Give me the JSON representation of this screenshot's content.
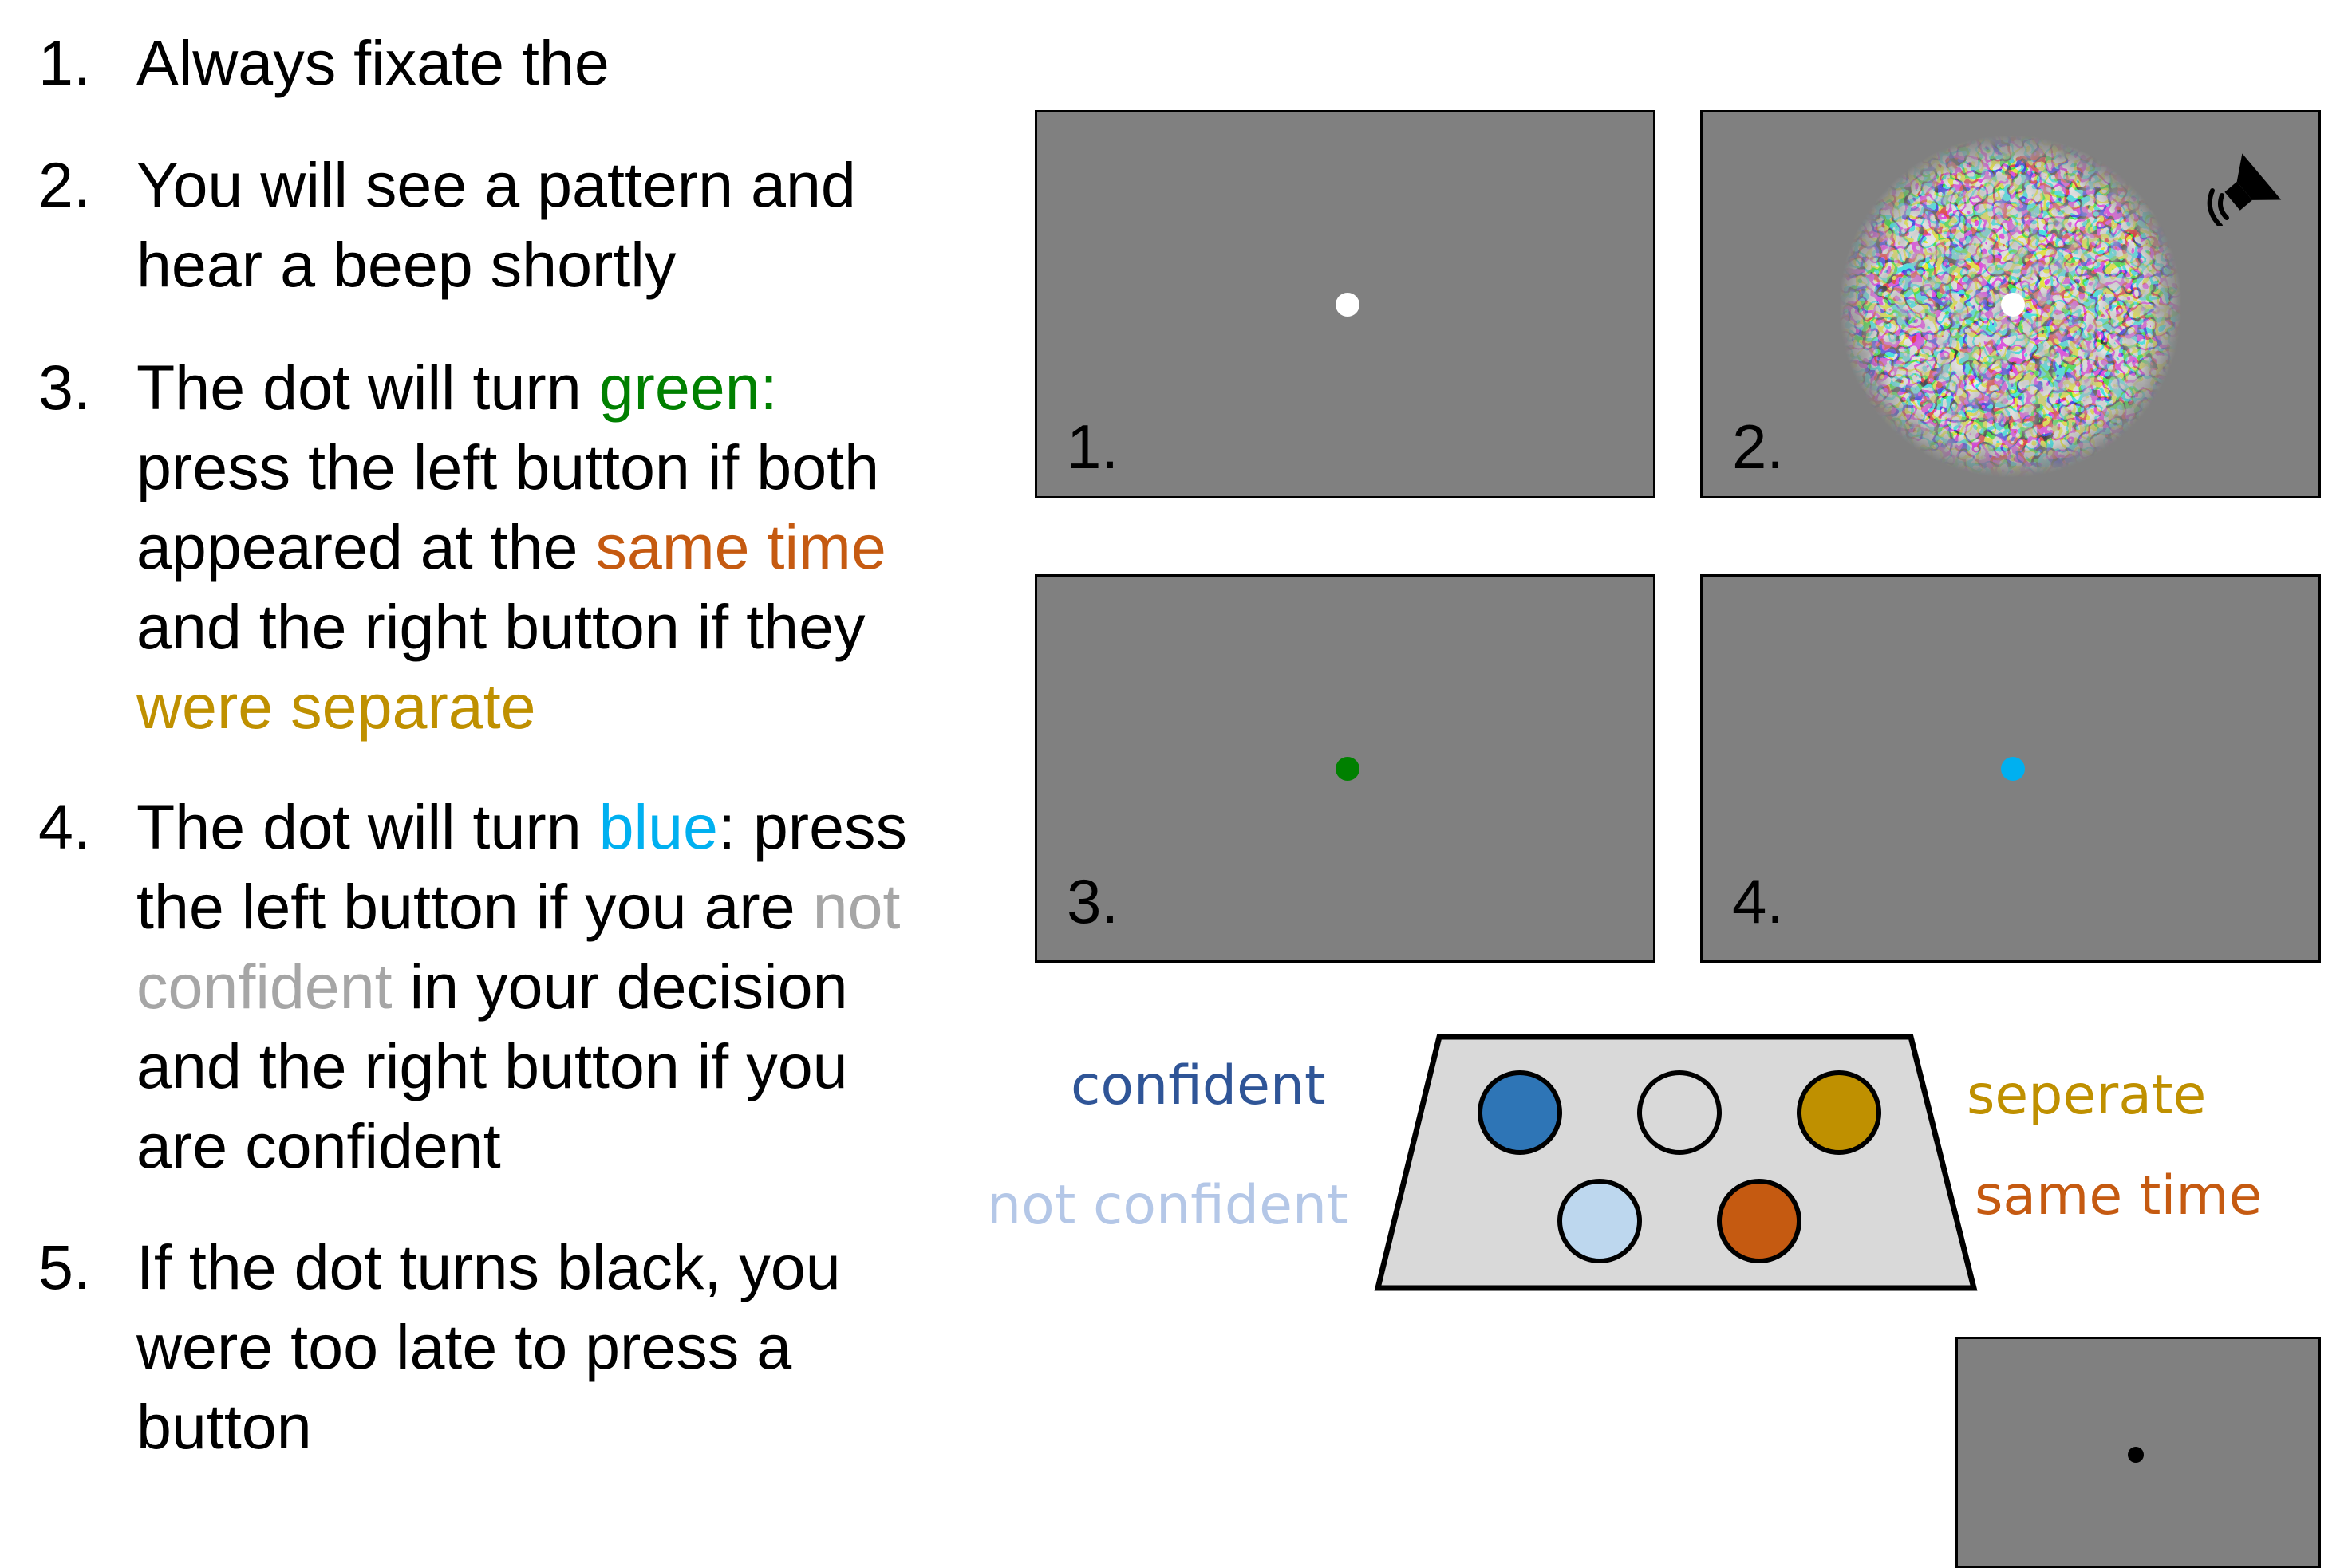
{
  "instructions": [
    {
      "num": "1.",
      "parts": [
        {
          "text": "Always fixate the",
          "color": "#000000"
        }
      ]
    },
    {
      "num": "2.",
      "parts": [
        {
          "text": "You will see a pattern and",
          "color": "#000000"
        },
        {
          "text": "hear a beep shortly",
          "color": "#000000"
        }
      ]
    },
    {
      "num": "3.",
      "parts": [
        {
          "text": "The dot will turn ",
          "color": "#000000"
        },
        {
          "text": "green:",
          "color": "#008000"
        },
        {
          "text": "press the left button if both",
          "color": "#000000"
        },
        {
          "text": "appeared at the ",
          "color": "#000000"
        },
        {
          "text": "same time",
          "color": "#c55a11"
        },
        {
          "text": "and the right button if they",
          "color": "#000000"
        },
        {
          "text": "were separate",
          "color": "#bf9000"
        }
      ]
    },
    {
      "num": "4.",
      "parts": [
        {
          "text": "The dot will turn ",
          "color": "#000000"
        },
        {
          "text": "blue",
          "color": "#00b0f0"
        },
        {
          "text": ": press",
          "color": "#000000"
        },
        {
          "text": "the left button if you are ",
          "color": "#000000"
        },
        {
          "text": "not",
          "color": "#a6a6a6"
        },
        {
          "text": "confident",
          "color": "#a6a6a6"
        },
        {
          "text": " in your decision",
          "color": "#000000"
        },
        {
          "text": "and the right button if you",
          "color": "#000000"
        },
        {
          "text": "are confident",
          "color": "#000000"
        }
      ]
    },
    {
      "num": "5.",
      "parts": [
        {
          "text": "If the dot turns black, you",
          "color": "#000000"
        },
        {
          "text": "were too late to press a",
          "color": "#000000"
        },
        {
          "text": "button",
          "color": "#000000"
        }
      ]
    }
  ],
  "screens": [
    {
      "label": "1.",
      "dot_color": "#ffffff",
      "pattern": false,
      "sound": false
    },
    {
      "label": "2.",
      "dot_color": "#ffffff",
      "pattern": true,
      "sound": true
    },
    {
      "label": "3.",
      "dot_color": "#008000",
      "pattern": false,
      "sound": false
    },
    {
      "label": "4.",
      "dot_color": "#00b0f0",
      "pattern": false,
      "sound": false
    },
    {
      "label": "",
      "dot_color": "#000000",
      "pattern": false,
      "sound": false
    }
  ],
  "response_box": {
    "buttons": [
      {
        "color": "#2e75b6",
        "meaning": "confident"
      },
      {
        "color": "#d9d9d9",
        "meaning": ""
      },
      {
        "color": "#bf9000",
        "meaning": "seperate"
      },
      {
        "color": "#bdd7ee",
        "meaning": "not confident"
      },
      {
        "color": "#c55a11",
        "meaning": "same time"
      }
    ],
    "labels": {
      "confident": "confident",
      "not_confident": "not confident",
      "seperate": "seperate",
      "same_time": "same time"
    },
    "label_colors": {
      "confident": "#2f5597",
      "not_confident": "#b4c7e7",
      "seperate": "#bf9000",
      "same_time": "#c55a11"
    }
  }
}
